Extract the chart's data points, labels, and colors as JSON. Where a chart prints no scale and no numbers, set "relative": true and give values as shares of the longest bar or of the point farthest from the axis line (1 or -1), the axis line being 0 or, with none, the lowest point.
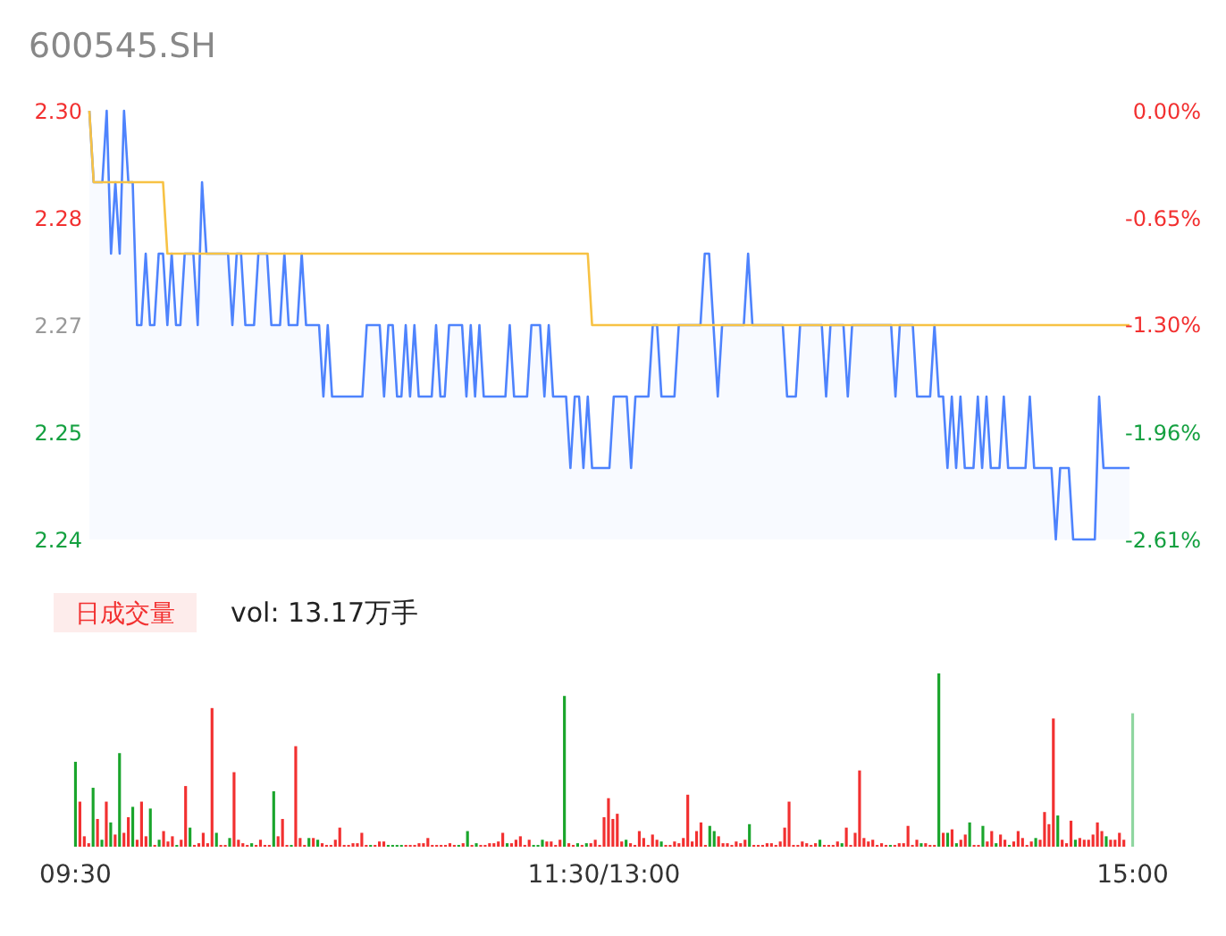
{
  "chart_data": [
    {
      "type": "line",
      "title": "600545.SH",
      "ylim": [
        2.24,
        2.3
      ],
      "categories": [
        null,
        null,
        null,
        null,
        null,
        null,
        null,
        null,
        null,
        null,
        null,
        null,
        null,
        null,
        null,
        null,
        null,
        null,
        null,
        null,
        null,
        null,
        null,
        null,
        null,
        null,
        null,
        null,
        null,
        null,
        null,
        null,
        null,
        null,
        null,
        null,
        null,
        null,
        null,
        null,
        null,
        null,
        null,
        null,
        null,
        null,
        null,
        null,
        null,
        null,
        null,
        null,
        null,
        null,
        null,
        null,
        null,
        null,
        null,
        null,
        null,
        null,
        null,
        null,
        null,
        null,
        null,
        null,
        null,
        null,
        null,
        null,
        null,
        null,
        null,
        null,
        null,
        null,
        null,
        null,
        null,
        null,
        null,
        null,
        null,
        null,
        null,
        null,
        null,
        null,
        null,
        null,
        null,
        null,
        null,
        null,
        null,
        null,
        null,
        null,
        null,
        null,
        null,
        null,
        null,
        null,
        null,
        null,
        null,
        null,
        null,
        null,
        null,
        null,
        null,
        null,
        null,
        null,
        null,
        null,
        null,
        null,
        null,
        null,
        null,
        null,
        null,
        null,
        null,
        null,
        null,
        null,
        null,
        null,
        null,
        null,
        null,
        null,
        null,
        null,
        null,
        null,
        null,
        null,
        null,
        null,
        null,
        null,
        null,
        null,
        null,
        null,
        null,
        null,
        null,
        null,
        null,
        null,
        null,
        null,
        null,
        null,
        null,
        null,
        null,
        null,
        null,
        null,
        null,
        null,
        null,
        null,
        null,
        null,
        null,
        null,
        null,
        null,
        null,
        null,
        null,
        null,
        null,
        null,
        null,
        null,
        null,
        null,
        null,
        null,
        null,
        null,
        null,
        null,
        null,
        null,
        null,
        null,
        null,
        null,
        null,
        null,
        null,
        null,
        null,
        null,
        null,
        null,
        null,
        null,
        null,
        null,
        null,
        null,
        null,
        null,
        null,
        null,
        null,
        null,
        null,
        null,
        null,
        null,
        null,
        null,
        null,
        null,
        null,
        null,
        null,
        null,
        null,
        null,
        null,
        null,
        null,
        null,
        null,
        null,
        null
      ],
      "yticks": [
        {
          "value": 2.3,
          "label": "2.30"
        },
        {
          "value": 2.285,
          "label": "2.28"
        },
        {
          "value": 2.27,
          "label": "2.27"
        },
        {
          "value": 2.255,
          "label": "2.25"
        },
        {
          "value": 2.24,
          "label": "2.24"
        }
      ],
      "y2lim": [
        -2.61,
        0
      ],
      "y2ticks": [
        {
          "value": 0,
          "label": "0.00%"
        },
        {
          "value": -0.65,
          "label": "-0.65%"
        },
        {
          "value": -1.3,
          "label": "-1.30%"
        },
        {
          "value": -1.96,
          "label": "-1.96%"
        },
        {
          "value": -2.61,
          "label": "-2.61%"
        }
      ],
      "series": [
        {
          "type": "area",
          "color": "#4e83fd",
          "values": [
            2.3,
            2.29,
            2.29,
            2.29,
            2.3,
            2.28,
            2.29,
            2.28,
            2.3,
            2.29,
            2.29,
            2.27,
            2.27,
            2.28,
            2.27,
            2.27,
            2.28,
            2.28,
            2.27,
            2.28,
            2.27,
            2.27,
            2.28,
            2.28,
            2.28,
            2.27,
            2.29,
            2.28,
            2.28,
            2.28,
            2.28,
            2.28,
            2.28,
            2.27,
            2.28,
            2.28,
            2.27,
            2.27,
            2.27,
            2.28,
            2.28,
            2.28,
            2.27,
            2.27,
            2.27,
            2.28,
            2.27,
            2.27,
            2.27,
            2.28,
            2.27,
            2.27,
            2.27,
            2.27,
            2.26,
            2.27,
            2.26,
            2.26,
            2.26,
            2.26,
            2.26,
            2.26,
            2.26,
            2.26,
            2.27,
            2.27,
            2.27,
            2.27,
            2.26,
            2.27,
            2.27,
            2.26,
            2.26,
            2.27,
            2.26,
            2.27,
            2.26,
            2.26,
            2.26,
            2.26,
            2.27,
            2.26,
            2.26,
            2.27,
            2.27,
            2.27,
            2.27,
            2.26,
            2.27,
            2.26,
            2.27,
            2.26,
            2.26,
            2.26,
            2.26,
            2.26,
            2.26,
            2.27,
            2.26,
            2.26,
            2.26,
            2.26,
            2.27,
            2.27,
            2.27,
            2.26,
            2.27,
            2.26,
            2.26,
            2.26,
            2.26,
            2.25,
            2.26,
            2.26,
            2.25,
            2.26,
            2.25,
            2.25,
            2.25,
            2.25,
            2.25,
            2.26,
            2.26,
            2.26,
            2.26,
            2.25,
            2.26,
            2.26,
            2.26,
            2.26,
            2.27,
            2.27,
            2.26,
            2.26,
            2.26,
            2.26,
            2.27,
            2.27,
            2.27,
            2.27,
            2.27,
            2.27,
            2.28,
            2.28,
            2.27,
            2.26,
            2.27,
            2.27,
            2.27,
            2.27,
            2.27,
            2.27,
            2.28,
            2.27,
            2.27,
            2.27,
            2.27,
            2.27,
            2.27,
            2.27,
            2.27,
            2.26,
            2.26,
            2.26,
            2.27,
            2.27,
            2.27,
            2.27,
            2.27,
            2.27,
            2.26,
            2.27,
            2.27,
            2.27,
            2.27,
            2.26,
            2.27,
            2.27,
            2.27,
            2.27,
            2.27,
            2.27,
            2.27,
            2.27,
            2.27,
            2.27,
            2.26,
            2.27,
            2.27,
            2.27,
            2.27,
            2.26,
            2.26,
            2.26,
            2.26,
            2.27,
            2.26,
            2.26,
            2.25,
            2.26,
            2.25,
            2.26,
            2.25,
            2.25,
            2.25,
            2.26,
            2.25,
            2.26,
            2.25,
            2.25,
            2.25,
            2.26,
            2.25,
            2.25,
            2.25,
            2.25,
            2.25,
            2.26,
            2.25,
            2.25,
            2.25,
            2.25,
            2.25,
            2.24,
            2.25,
            2.25,
            2.25,
            2.24,
            2.24,
            2.24,
            2.24,
            2.24,
            2.24,
            2.26,
            2.25,
            2.25,
            2.25,
            2.25,
            2.25,
            2.25,
            2.25
          ]
        },
        {
          "type": "line",
          "color": "#f7c244",
          "values": [
            2.3,
            2.29,
            2.29,
            2.29,
            2.29,
            2.29,
            2.29,
            2.29,
            2.29,
            2.29,
            2.29,
            2.29,
            2.29,
            2.29,
            2.29,
            2.29,
            2.29,
            2.29,
            2.28,
            2.28,
            2.28,
            2.28,
            2.28,
            2.28,
            2.28,
            2.28,
            2.28,
            2.28,
            2.28,
            2.28,
            2.28,
            2.28,
            2.28,
            2.28,
            2.28,
            2.28,
            2.28,
            2.28,
            2.28,
            2.28,
            2.28,
            2.28,
            2.28,
            2.28,
            2.28,
            2.28,
            2.28,
            2.28,
            2.28,
            2.28,
            2.28,
            2.28,
            2.28,
            2.28,
            2.28,
            2.28,
            2.28,
            2.28,
            2.28,
            2.28,
            2.28,
            2.28,
            2.28,
            2.28,
            2.28,
            2.28,
            2.28,
            2.28,
            2.28,
            2.28,
            2.28,
            2.28,
            2.28,
            2.28,
            2.28,
            2.28,
            2.28,
            2.28,
            2.28,
            2.28,
            2.28,
            2.28,
            2.28,
            2.28,
            2.28,
            2.28,
            2.28,
            2.28,
            2.28,
            2.28,
            2.28,
            2.28,
            2.28,
            2.28,
            2.28,
            2.28,
            2.28,
            2.28,
            2.28,
            2.28,
            2.28,
            2.28,
            2.28,
            2.28,
            2.28,
            2.28,
            2.28,
            2.28,
            2.28,
            2.28,
            2.28,
            2.28,
            2.28,
            2.28,
            2.28,
            2.28,
            2.27,
            2.27,
            2.27,
            2.27,
            2.27,
            2.27,
            2.27,
            2.27,
            2.27,
            2.27,
            2.27,
            2.27,
            2.27,
            2.27,
            2.27,
            2.27,
            2.27,
            2.27,
            2.27,
            2.27,
            2.27,
            2.27,
            2.27,
            2.27,
            2.27,
            2.27,
            2.27,
            2.27,
            2.27,
            2.27,
            2.27,
            2.27,
            2.27,
            2.27,
            2.27,
            2.27,
            2.27,
            2.27,
            2.27,
            2.27,
            2.27,
            2.27,
            2.27,
            2.27,
            2.27,
            2.27,
            2.27,
            2.27,
            2.27,
            2.27,
            2.27,
            2.27,
            2.27,
            2.27,
            2.27,
            2.27,
            2.27,
            2.27,
            2.27,
            2.27,
            2.27,
            2.27,
            2.27,
            2.27,
            2.27,
            2.27,
            2.27,
            2.27,
            2.27,
            2.27,
            2.27,
            2.27,
            2.27,
            2.27,
            2.27,
            2.27,
            2.27,
            2.27,
            2.27,
            2.27,
            2.27,
            2.27,
            2.27,
            2.27,
            2.27,
            2.27,
            2.27,
            2.27,
            2.27,
            2.27,
            2.27,
            2.27,
            2.27,
            2.27,
            2.27,
            2.27,
            2.27,
            2.27,
            2.27,
            2.27,
            2.27,
            2.27,
            2.27,
            2.27,
            2.27,
            2.27,
            2.27,
            2.27,
            2.27,
            2.27,
            2.27,
            2.27,
            2.27,
            2.27,
            2.27,
            2.27,
            2.27,
            2.27,
            2.27,
            2.27,
            2.27,
            2.27,
            2.27,
            2.27,
            2.27
          ]
        }
      ]
    },
    {
      "type": "bar",
      "title": "日成交量",
      "annotations": [
        "vol: 13.17万手"
      ],
      "relative": true,
      "categories": [
        "09:30",
        null,
        null,
        null,
        null,
        null,
        null,
        null,
        null,
        null,
        null,
        null,
        null,
        null,
        null,
        null,
        null,
        null,
        null,
        null,
        null,
        null,
        null,
        null,
        null,
        null,
        null,
        null,
        null,
        null,
        null,
        null,
        null,
        null,
        null,
        null,
        null,
        null,
        null,
        null,
        null,
        null,
        null,
        null,
        null,
        null,
        null,
        null,
        null,
        null,
        null,
        null,
        null,
        null,
        null,
        null,
        null,
        null,
        null,
        null,
        null,
        null,
        null,
        null,
        null,
        null,
        null,
        null,
        null,
        null,
        null,
        null,
        null,
        null,
        null,
        null,
        null,
        null,
        null,
        null,
        null,
        null,
        null,
        null,
        null,
        null,
        null,
        null,
        null,
        null,
        null,
        null,
        null,
        null,
        null,
        null,
        null,
        null,
        null,
        null,
        null,
        null,
        null,
        null,
        null,
        null,
        null,
        null,
        null,
        null,
        null,
        null,
        null,
        null,
        null,
        null,
        null,
        null,
        null,
        null,
        "11:30/13:00",
        null,
        null,
        null,
        null,
        null,
        null,
        null,
        null,
        null,
        null,
        null,
        null,
        null,
        null,
        null,
        null,
        null,
        null,
        null,
        null,
        null,
        null,
        null,
        null,
        null,
        null,
        null,
        null,
        null,
        null,
        null,
        null,
        null,
        null,
        null,
        null,
        null,
        null,
        null,
        null,
        null,
        null,
        null,
        null,
        null,
        null,
        null,
        null,
        null,
        null,
        null,
        null,
        null,
        null,
        null,
        null,
        null,
        null,
        null,
        null,
        null,
        null,
        null,
        null,
        null,
        null,
        null,
        null,
        null,
        null,
        null,
        null,
        null,
        null,
        null,
        null,
        null,
        null,
        null,
        null,
        null,
        null,
        null,
        null,
        null,
        null,
        null,
        null,
        null,
        null,
        null,
        null,
        null,
        null,
        null,
        null,
        null,
        null,
        null,
        null,
        null,
        null,
        null,
        null,
        null,
        null,
        null,
        null,
        null,
        null,
        null,
        null,
        null,
        null,
        null,
        null,
        null,
        null,
        null,
        "15:00"
      ],
      "values": [
        0.49,
        0.26,
        0.06,
        0.02,
        0.34,
        0.16,
        0.04,
        0.26,
        0.14,
        0.07,
        0.54,
        0.08,
        0.17,
        0.23,
        0.04,
        0.26,
        0.06,
        0.22,
        0.01,
        0.04,
        0.09,
        0.03,
        0.06,
        0.01,
        0.04,
        0.35,
        0.11,
        0.01,
        0.02,
        0.08,
        0.02,
        0.8,
        0.08,
        0.01,
        0.01,
        0.05,
        0.43,
        0.04,
        0.02,
        0.01,
        0.02,
        0.01,
        0.04,
        0.01,
        0.01,
        0.32,
        0.06,
        0.16,
        0.01,
        0.01,
        0.58,
        0.05,
        0.01,
        0.05,
        0.05,
        0.04,
        0.02,
        0.01,
        0.01,
        0.04,
        0.11,
        0.01,
        0.01,
        0.02,
        0.02,
        0.08,
        0.01,
        0.01,
        0.01,
        0.03,
        0.03,
        0.01,
        0.01,
        0.01,
        0.01,
        0.01,
        0.01,
        0.01,
        0.02,
        0.02,
        0.05,
        0.01,
        0.01,
        0.01,
        0.01,
        0.02,
        0.01,
        0.01,
        0.02,
        0.09,
        0.01,
        0.02,
        0.01,
        0.01,
        0.02,
        0.02,
        0.03,
        0.08,
        0.02,
        0.02,
        0.04,
        0.06,
        0.01,
        0.04,
        0.01,
        0.01,
        0.04,
        0.03,
        0.03,
        0.01,
        0.04,
        0.87,
        0.02,
        0.01,
        0.02,
        0.01,
        0.02,
        0.02,
        0.04,
        0.01,
        0.17,
        0.28,
        0.16,
        0.19,
        0.03,
        0.04,
        0.02,
        0.01,
        0.09,
        0.05,
        0.01,
        0.07,
        0.04,
        0.03,
        0.01,
        0.01,
        0.03,
        0.02,
        0.05,
        0.3,
        0.03,
        0.09,
        0.14,
        0.01,
        0.12,
        0.09,
        0.06,
        0.02,
        0.02,
        0.01,
        0.03,
        0.02,
        0.04,
        0.13,
        0.01,
        0.01,
        0.01,
        0.02,
        0.02,
        0.01,
        0.03,
        0.11,
        0.26,
        0.01,
        0.01,
        0.03,
        0.02,
        0.01,
        0.02,
        0.04,
        0.01,
        0.01,
        0.01,
        0.03,
        0.02,
        0.11,
        0.01,
        0.08,
        0.44,
        0.05,
        0.03,
        0.04,
        0.01,
        0.02,
        0.01,
        0.01,
        0.01,
        0.02,
        0.02,
        0.12,
        0.01,
        0.04,
        0.02,
        0.02,
        0.01,
        0.01,
        1,
        0.08,
        0.08,
        0.1,
        0.02,
        0.04,
        0.07,
        0.14,
        0.01,
        0.01,
        0.12,
        0.03,
        0.09,
        0.02,
        0.07,
        0.04,
        0.01,
        0.03,
        0.09,
        0.05,
        0.01,
        0.03,
        0.05,
        0.04,
        0.2,
        0.13,
        0.74,
        0.18,
        0.04,
        0.02,
        0.15,
        0.04,
        0.05,
        0.04,
        0.04,
        0.07,
        0.14,
        0.09,
        0.06,
        0.04,
        0.04,
        0.08,
        0.04,
        null,
        0.77
      ],
      "colors": [
        "#1aa52c",
        "#f23030",
        "#f23030",
        "#f23030",
        "#1aa52c",
        "#f23030",
        "#1aa52c",
        "#f23030",
        "#1aa52c",
        "#f23030",
        "#1aa52c",
        "#f23030",
        "#f23030",
        "#1aa52c",
        "#f23030",
        "#f23030",
        "#f23030",
        "#1aa52c",
        "#f23030",
        "#1aa52c",
        "#f23030",
        "#f23030",
        "#f23030",
        "#1aa52c",
        "#f23030",
        "#f23030",
        "#1aa52c",
        "#f23030",
        "#f23030",
        "#f23030",
        "#f23030",
        "#f23030",
        "#1aa52c",
        "#f23030",
        "#f23030",
        "#1aa52c",
        "#f23030",
        "#f23030",
        "#f23030",
        "#f23030",
        "#1aa52c",
        "#f23030",
        "#f23030",
        "#f23030",
        "#f23030",
        "#1aa52c",
        "#f23030",
        "#f23030",
        "#f23030",
        "#1aa52c",
        "#f23030",
        "#f23030",
        "#f23030",
        "#1aa52c",
        "#f23030",
        "#1aa52c",
        "#f23030",
        "#f23030",
        "#f23030",
        "#f23030",
        "#f23030",
        "#f23030",
        "#f23030",
        "#f23030",
        "#f23030",
        "#f23030",
        "#f23030",
        "#1aa52c",
        "#f23030",
        "#f23030",
        "#f23030",
        "#1aa52c",
        "#1aa52c",
        "#1aa52c",
        "#1aa52c",
        "#f23030",
        "#f23030",
        "#f23030",
        "#f23030",
        "#f23030",
        "#f23030",
        "#f23030",
        "#f23030",
        "#f23030",
        "#f23030",
        "#f23030",
        "#f23030",
        "#1aa52c",
        "#f23030",
        "#1aa52c",
        "#f23030",
        "#1aa52c",
        "#f23030",
        "#f23030",
        "#f23030",
        "#f23030",
        "#f23030",
        "#f23030",
        "#1aa52c",
        "#f23030",
        "#f23030",
        "#f23030",
        "#f23030",
        "#f23030",
        "#1aa52c",
        "#1aa52c",
        "#1aa52c",
        "#f23030",
        "#f23030",
        "#f23030",
        "#f23030",
        "#1aa52c",
        "#f23030",
        "#f23030",
        "#1aa52c",
        "#f23030",
        "#1aa52c",
        "#f23030",
        "#f23030",
        "#f23030",
        "#f23030",
        "#f23030",
        "#f23030",
        "#f23030",
        "#f23030",
        "#1aa52c",
        "#f23030",
        "#f23030",
        "#f23030",
        "#f23030",
        "#f23030",
        "#f23030",
        "#f23030",
        "#1aa52c",
        "#f23030",
        "#f23030",
        "#f23030",
        "#f23030",
        "#f23030",
        "#f23030",
        "#f23030",
        "#f23030",
        "#f23030",
        "#f23030",
        "#1aa52c",
        "#1aa52c",
        "#f23030",
        "#f23030",
        "#f23030",
        "#f23030",
        "#f23030",
        "#f23030",
        "#f23030",
        "#1aa52c",
        "#f23030",
        "#f23030",
        "#f23030",
        "#f23030",
        "#f23030",
        "#f23030",
        "#f23030",
        "#f23030",
        "#f23030",
        "#f23030",
        "#f23030",
        "#f23030",
        "#f23030",
        "#f23030",
        "#f23030",
        "#1aa52c",
        "#f23030",
        "#f23030",
        "#f23030",
        "#f23030",
        "#1aa52c",
        "#f23030",
        "#f23030",
        "#f23030",
        "#f23030",
        "#f23030",
        "#f23030",
        "#f23030",
        "#f23030",
        "#f23030",
        "#f23030",
        "#1aa52c",
        "#f23030",
        "#f23030",
        "#f23030",
        "#f23030",
        "#f23030",
        "#f23030",
        "#1aa52c",
        "#f23030",
        "#f23030",
        "#f23030",
        "#1aa52c",
        "#f23030",
        "#1aa52c",
        "#f23030",
        "#1aa52c",
        "#f23030",
        "#f23030",
        "#1aa52c",
        "#f23030",
        "#f23030",
        "#1aa52c",
        "#f23030",
        "#f23030",
        "#1aa52c",
        "#f23030",
        "#f23030",
        "#1aa52c",
        "#f23030",
        "#f23030",
        "#f23030",
        "#f23030",
        "#f23030",
        "#1aa52c",
        "#f23030",
        "#f23030",
        "#f23030",
        "#f23030",
        "#1aa52c",
        "#f23030",
        "#f23030",
        "#f23030",
        "#1aa52c",
        "#f23030",
        "#f23030",
        "#f23030",
        "#f23030",
        "#f23030",
        "#f23030",
        "#1aa52c",
        "#f23030",
        "#f23030",
        "#f23030",
        "#f23030",
        null,
        "#8fd6a0"
      ]
    }
  ]
}
